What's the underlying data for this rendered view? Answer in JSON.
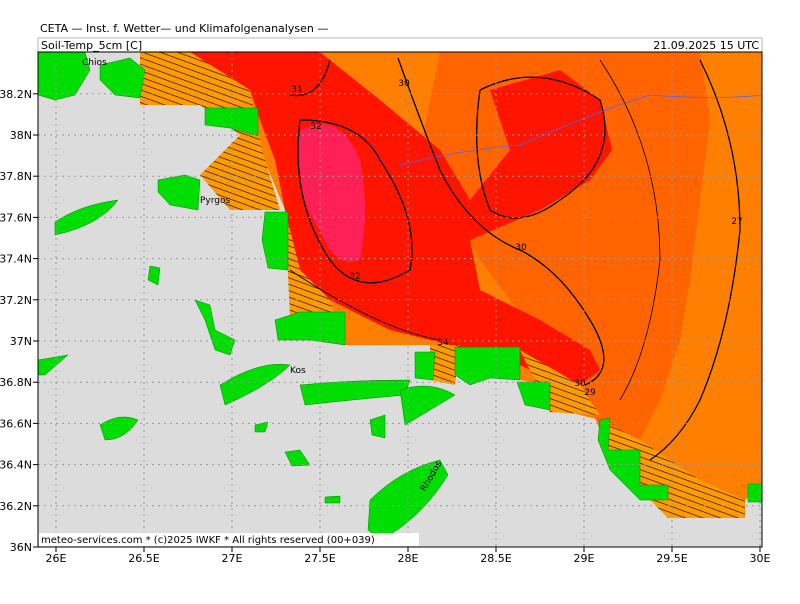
{
  "header": {
    "title": "CETA — Inst. f. Wetter— und Klimafolgenanalysen —",
    "variable": "Soil-Temp_5cm [C]",
    "valid_time": "21.09.2025 15 UTC"
  },
  "map": {
    "lat_ticks": [
      {
        "value": 36,
        "label": "36N"
      },
      {
        "value": 36.2,
        "label": "36.2N"
      },
      {
        "value": 36.4,
        "label": "36.4N"
      },
      {
        "value": 36.6,
        "label": "36.6N"
      },
      {
        "value": 36.8,
        "label": "36.8N"
      },
      {
        "value": 37,
        "label": "37N"
      },
      {
        "value": 37.2,
        "label": "37.2N"
      },
      {
        "value": 37.4,
        "label": "37.4N"
      },
      {
        "value": 37.6,
        "label": "37.6N"
      },
      {
        "value": 37.8,
        "label": "37.8N"
      },
      {
        "value": 38,
        "label": "38N"
      },
      {
        "value": 38.2,
        "label": "38.2N"
      }
    ],
    "lon_ticks": [
      {
        "value": 26,
        "label": "26E"
      },
      {
        "value": 26.5,
        "label": "26.5E"
      },
      {
        "value": 27,
        "label": "27E"
      },
      {
        "value": 27.5,
        "label": "27.5E"
      },
      {
        "value": 28,
        "label": "28E"
      },
      {
        "value": 28.5,
        "label": "28.5E"
      },
      {
        "value": 29,
        "label": "29E"
      },
      {
        "value": 29.5,
        "label": "29.5E"
      },
      {
        "value": 30,
        "label": "30E"
      }
    ],
    "contour_labels": [
      31,
      32,
      30,
      32,
      30,
      27,
      34,
      30,
      29
    ],
    "place_names": [
      "Chios",
      "Pyrgos",
      "Kos",
      "Rhodos"
    ]
  },
  "footer": {
    "credit": "meteo-services.com * (c)2025 IWKF * All rights reserved (00+039)"
  }
}
